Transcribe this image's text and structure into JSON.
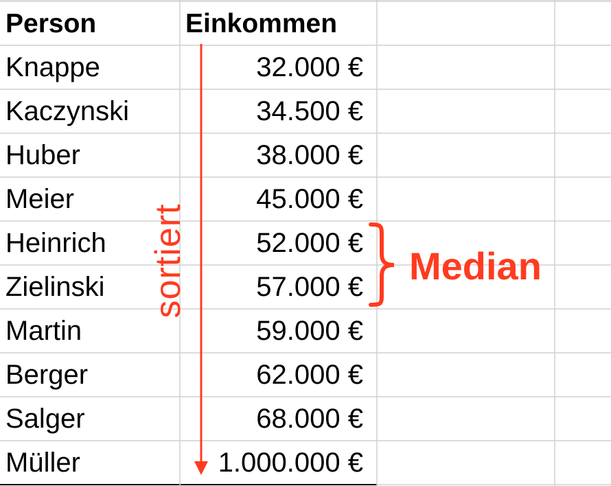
{
  "table": {
    "headers": [
      "Person",
      "Einkommen"
    ],
    "rows": [
      {
        "person": "Knappe",
        "income": "32.000 €"
      },
      {
        "person": "Kaczynski",
        "income": "34.500 €"
      },
      {
        "person": "Huber",
        "income": "38.000 €"
      },
      {
        "person": "Meier",
        "income": "45.000 €"
      },
      {
        "person": "Heinrich",
        "income": "52.000 €"
      },
      {
        "person": "Zielinski",
        "income": "57.000 €"
      },
      {
        "person": "Martin",
        "income": "59.000 €"
      },
      {
        "person": "Berger",
        "income": "62.000 €"
      },
      {
        "person": "Salger",
        "income": "68.000 €"
      },
      {
        "person": "Müller",
        "income": "1.000.000 €"
      }
    ]
  },
  "annotations": {
    "sorted_label": "sortiert",
    "median_label": "Median",
    "accent_color": "#ff3b1f"
  }
}
